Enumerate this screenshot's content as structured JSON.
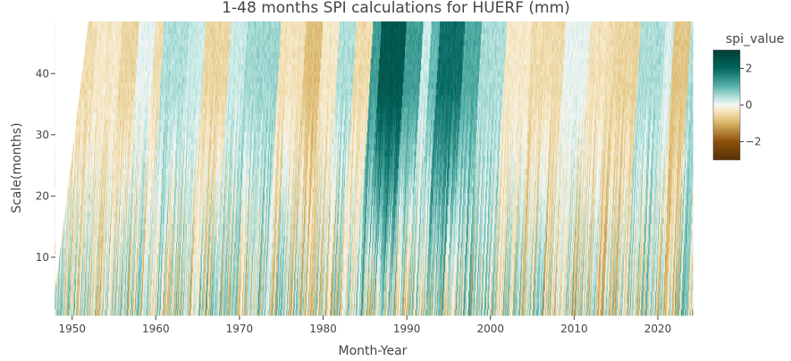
{
  "chart_data": {
    "type": "heatmap",
    "title": "1-48 months SPI calculations for HUERF (mm)",
    "xlabel": "Month-Year",
    "ylabel": "Scale(months)",
    "x_range": [
      "1948-01",
      "2024-03"
    ],
    "y_range": [
      1,
      48
    ],
    "x_ticks": [
      "1950",
      "1960",
      "1970",
      "1980",
      "1990",
      "2000",
      "2010",
      "2020"
    ],
    "y_ticks": [
      10,
      20,
      30,
      40
    ],
    "colorbar": {
      "title": "spi_value",
      "ticks": [
        2,
        0,
        -2
      ],
      "range": [
        -3,
        3
      ],
      "colorscale": [
        [
          -3.0,
          "#543005"
        ],
        [
          -2.0,
          "#8c510a"
        ],
        [
          -1.0,
          "#d8b365"
        ],
        [
          -0.3,
          "#f6e8c3"
        ],
        [
          0.0,
          "#f5f5f5"
        ],
        [
          0.3,
          "#c7eae5"
        ],
        [
          1.0,
          "#5ab4ac"
        ],
        [
          2.0,
          "#01665e"
        ],
        [
          3.0,
          "#003c30"
        ]
      ]
    },
    "period_spi": [
      {
        "start": 1948,
        "end": 1951,
        "spi": -0.5
      },
      {
        "start": 1951,
        "end": 1954,
        "spi": -0.3
      },
      {
        "start": 1954,
        "end": 1956,
        "spi": -0.6
      },
      {
        "start": 1956,
        "end": 1958,
        "spi": 0.1
      },
      {
        "start": 1958,
        "end": 1959,
        "spi": -0.5
      },
      {
        "start": 1959,
        "end": 1962,
        "spi": 0.5
      },
      {
        "start": 1962,
        "end": 1964,
        "spi": 0.3
      },
      {
        "start": 1964,
        "end": 1967,
        "spi": -0.6
      },
      {
        "start": 1967,
        "end": 1969,
        "spi": 0.3
      },
      {
        "start": 1969,
        "end": 1973,
        "spi": 0.6
      },
      {
        "start": 1973,
        "end": 1976,
        "spi": -0.4
      },
      {
        "start": 1976,
        "end": 1978,
        "spi": -0.9
      },
      {
        "start": 1978,
        "end": 1980,
        "spi": -0.3
      },
      {
        "start": 1980,
        "end": 1982,
        "spi": 0.5
      },
      {
        "start": 1982,
        "end": 1984,
        "spi": -0.5
      },
      {
        "start": 1984,
        "end": 1985,
        "spi": 1.4
      },
      {
        "start": 1985,
        "end": 1988,
        "spi": 2.5
      },
      {
        "start": 1988,
        "end": 1990,
        "spi": 1.4
      },
      {
        "start": 1990,
        "end": 1991,
        "spi": 0.3
      },
      {
        "start": 1991,
        "end": 1992,
        "spi": 1.0
      },
      {
        "start": 1992,
        "end": 1995,
        "spi": 2.0
      },
      {
        "start": 1995,
        "end": 1997,
        "spi": 1.2
      },
      {
        "start": 1997,
        "end": 2000,
        "spi": 0.5
      },
      {
        "start": 2000,
        "end": 2003,
        "spi": -0.3
      },
      {
        "start": 2003,
        "end": 2007,
        "spi": -0.5
      },
      {
        "start": 2007,
        "end": 2010,
        "spi": 0.1
      },
      {
        "start": 2010,
        "end": 2013,
        "spi": -0.4
      },
      {
        "start": 2013,
        "end": 2016,
        "spi": -0.6
      },
      {
        "start": 2016,
        "end": 2019,
        "spi": 0.5
      },
      {
        "start": 2019,
        "end": 2020,
        "spi": 0.2
      },
      {
        "start": 2020,
        "end": 2022,
        "spi": -0.8
      },
      {
        "start": 2022,
        "end": 2024.25,
        "spi": 0.5
      }
    ]
  }
}
